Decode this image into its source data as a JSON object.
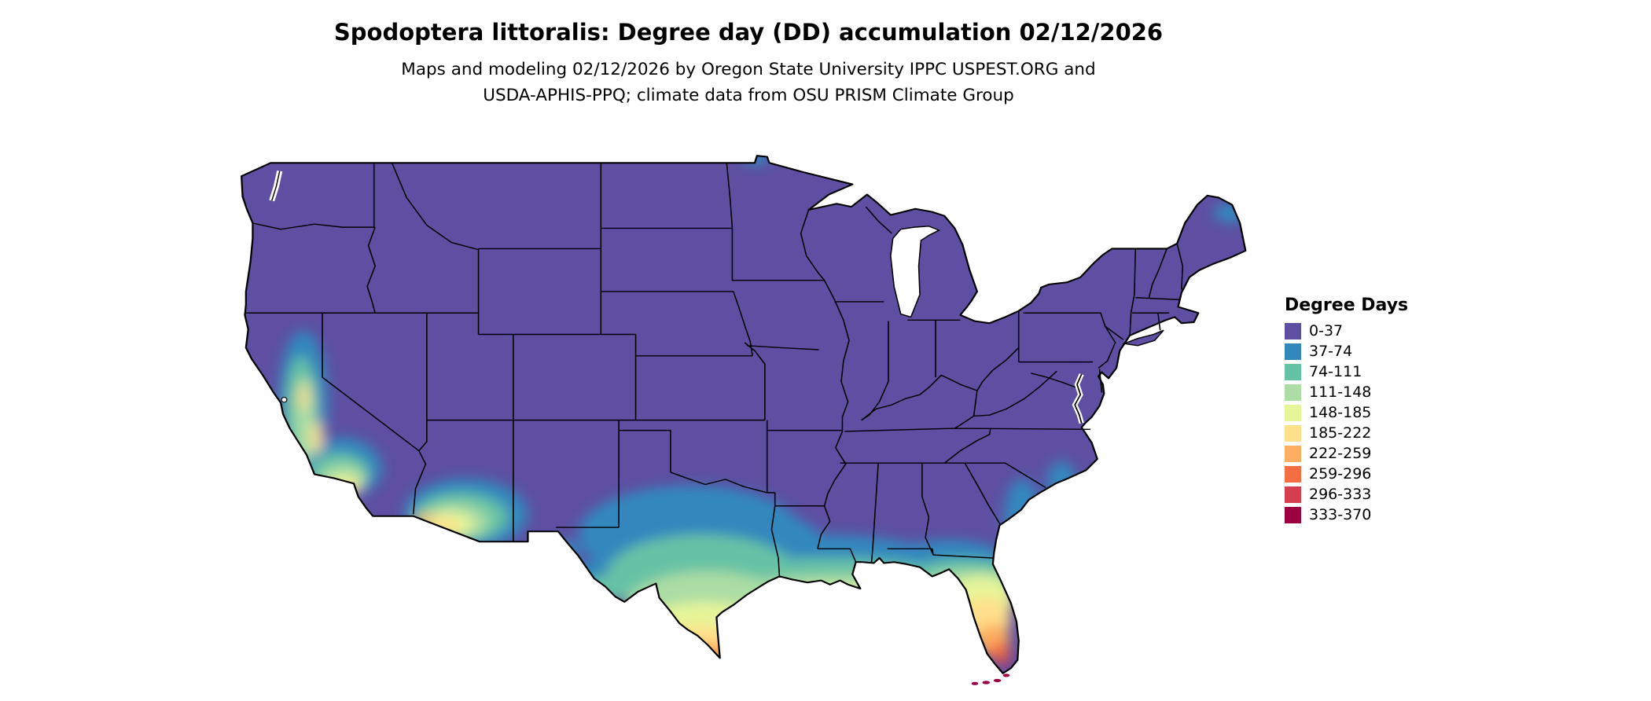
{
  "header": {
    "title": "Spodoptera littoralis: Degree day (DD) accumulation 02/12/2026",
    "subtitle_line1": "Maps and modeling 02/12/2026 by Oregon State University IPPC USPEST.ORG and",
    "subtitle_line2": "USDA-APHIS-PPQ; climate data from OSU PRISM Climate Group"
  },
  "legend": {
    "title": "Degree Days",
    "items": [
      {
        "label": "0-37",
        "color": "#5e4fa2"
      },
      {
        "label": "37-74",
        "color": "#3288bd"
      },
      {
        "label": "74-111",
        "color": "#66c2a5"
      },
      {
        "label": "111-148",
        "color": "#abdda4"
      },
      {
        "label": "148-185",
        "color": "#e6f598"
      },
      {
        "label": "185-222",
        "color": "#fee08b"
      },
      {
        "label": "222-259",
        "color": "#fdae61"
      },
      {
        "label": "259-296",
        "color": "#f46d43"
      },
      {
        "label": "296-333",
        "color": "#d53e4f"
      },
      {
        "label": "333-370",
        "color": "#9e0142"
      }
    ]
  },
  "map": {
    "region": "Contiguous United States",
    "base_color": "#5e4fa2",
    "border_color": "#000000",
    "water_color": "#ffffff"
  }
}
